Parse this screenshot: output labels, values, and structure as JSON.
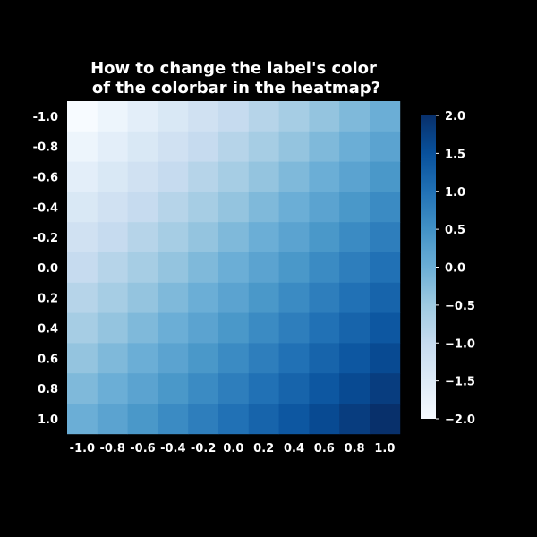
{
  "chart_data": {
    "type": "heatmap",
    "title_lines": [
      "How to change the label's color",
      "of the colorbar in the heatmap?"
    ],
    "x_ticks": [
      "-1.0",
      "-0.8",
      "-0.6",
      "-0.4",
      "-0.2",
      "0.0",
      "0.2",
      "0.4",
      "0.6",
      "0.8",
      "1.0"
    ],
    "y_ticks": [
      "-1.0",
      "-0.8",
      "-0.6",
      "-0.4",
      "-0.2",
      "0.0",
      "0.2",
      "0.4",
      "0.6",
      "0.8",
      "1.0"
    ],
    "x": [
      -1.0,
      -0.8,
      -0.6,
      -0.4,
      -0.2,
      0.0,
      0.2,
      0.4,
      0.6,
      0.8,
      1.0
    ],
    "y": [
      -1.0,
      -0.8,
      -0.6,
      -0.4,
      -0.2,
      0.0,
      0.2,
      0.4,
      0.6,
      0.8,
      1.0
    ],
    "values": [
      [
        -2.0,
        -1.8,
        -1.6,
        -1.4,
        -1.2,
        -1.0,
        -0.8,
        -0.6,
        -0.4,
        -0.2,
        0.0
      ],
      [
        -1.8,
        -1.6,
        -1.4,
        -1.2,
        -1.0,
        -0.8,
        -0.6,
        -0.4,
        -0.2,
        0.0,
        0.2
      ],
      [
        -1.6,
        -1.4,
        -1.2,
        -1.0,
        -0.8,
        -0.6,
        -0.4,
        -0.2,
        0.0,
        0.2,
        0.4
      ],
      [
        -1.4,
        -1.2,
        -1.0,
        -0.8,
        -0.6,
        -0.4,
        -0.2,
        0.0,
        0.2,
        0.4,
        0.6
      ],
      [
        -1.2,
        -1.0,
        -0.8,
        -0.6,
        -0.4,
        -0.2,
        0.0,
        0.2,
        0.4,
        0.6,
        0.8
      ],
      [
        -1.0,
        -0.8,
        -0.6,
        -0.4,
        -0.2,
        0.0,
        0.2,
        0.4,
        0.6,
        0.8,
        1.0
      ],
      [
        -0.8,
        -0.6,
        -0.4,
        -0.2,
        0.0,
        0.2,
        0.4,
        0.6,
        0.8,
        1.0,
        1.2
      ],
      [
        -0.6,
        -0.4,
        -0.2,
        0.0,
        0.2,
        0.4,
        0.6,
        0.8,
        1.0,
        1.2,
        1.4
      ],
      [
        -0.4,
        -0.2,
        0.0,
        0.2,
        0.4,
        0.6,
        0.8,
        1.0,
        1.2,
        1.4,
        1.6
      ],
      [
        -0.2,
        0.0,
        0.2,
        0.4,
        0.6,
        0.8,
        1.0,
        1.2,
        1.4,
        1.6,
        1.8
      ],
      [
        0.0,
        0.2,
        0.4,
        0.6,
        0.8,
        1.0,
        1.2,
        1.4,
        1.6,
        1.8,
        2.0
      ]
    ],
    "colormap": "Blues",
    "vmin": -2.0,
    "vmax": 2.0,
    "colorbar": {
      "ticks": [
        2.0,
        1.5,
        1.0,
        0.5,
        0.0,
        -0.5,
        -1.0,
        -1.5,
        -2.0
      ],
      "tick_labels": [
        "2.0",
        "1.5",
        "1.0",
        "0.5",
        "0.0",
        "−0.5",
        "−1.0",
        "−1.5",
        "−2.0"
      ],
      "placement": "right"
    },
    "grid": false,
    "colors": {
      "background": "#000000",
      "text": "#ffffff"
    }
  }
}
